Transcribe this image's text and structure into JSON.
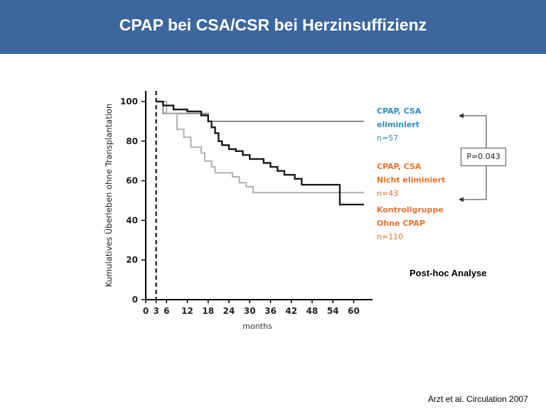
{
  "slide": {
    "title": "CPAP bei CSA/CSR bei Herzinsuffizienz",
    "title_bar_color": "#3b679e",
    "posthoc": "Post-hoc Analyse",
    "citation": "Arzt et al. Circulation 2007"
  },
  "legend": {
    "eliminated": {
      "line1": "CPAP, CSA",
      "line2": "eliminiert",
      "n": "n=57",
      "color": "#2e8bc0"
    },
    "not_eliminated": {
      "line1": "CPAP, CSA",
      "line2": "Nicht eliminiert",
      "n": "n=43",
      "color": "#e8702a"
    },
    "control": {
      "line1": "Kontrollgruppe",
      "line2": "Ohne CPAP",
      "n": "n=110",
      "color": "#e8702a"
    }
  },
  "pvalue": {
    "label": "P=0.043"
  },
  "chart_data": {
    "type": "line",
    "title": "",
    "xlabel": "months",
    "ylabel": "Kumulatives Überleben ohne Transplantation",
    "xlim": [
      0,
      64
    ],
    "ylim": [
      0,
      100
    ],
    "xticks": [
      0,
      3,
      6,
      12,
      18,
      24,
      30,
      36,
      42,
      48,
      54,
      60
    ],
    "yticks": [
      0,
      20,
      40,
      60,
      80,
      100
    ],
    "dashed_reference_x": 3,
    "grid": false,
    "series": [
      {
        "label": "CPAP, CSA eliminiert",
        "color": "#8a8a8a",
        "step": true,
        "points": [
          [
            3,
            100
          ],
          [
            5,
            100
          ],
          [
            5,
            94
          ],
          [
            18,
            94
          ],
          [
            18,
            90
          ],
          [
            63,
            90
          ]
        ]
      },
      {
        "label": "CPAP, CSA Nicht eliminiert",
        "color": "#b0b0b0",
        "step": true,
        "points": [
          [
            3,
            100
          ],
          [
            6,
            100
          ],
          [
            6,
            94
          ],
          [
            9,
            94
          ],
          [
            9,
            86
          ],
          [
            11,
            86
          ],
          [
            11,
            82
          ],
          [
            13,
            82
          ],
          [
            13,
            77
          ],
          [
            16,
            77
          ],
          [
            16,
            74
          ],
          [
            17,
            74
          ],
          [
            17,
            70
          ],
          [
            19,
            70
          ],
          [
            19,
            67
          ],
          [
            20,
            67
          ],
          [
            20,
            64
          ],
          [
            25,
            64
          ],
          [
            25,
            62
          ],
          [
            27,
            62
          ],
          [
            27,
            59
          ],
          [
            29,
            59
          ],
          [
            29,
            57
          ],
          [
            31,
            57
          ],
          [
            31,
            54
          ],
          [
            56,
            54
          ],
          [
            56,
            54
          ],
          [
            63,
            54
          ]
        ]
      },
      {
        "label": "Kontrollgruppe Ohne CPAP",
        "color": "#1a1a1a",
        "step": true,
        "points": [
          [
            3,
            100
          ],
          [
            5,
            100
          ],
          [
            5,
            98
          ],
          [
            8,
            98
          ],
          [
            8,
            96
          ],
          [
            12,
            96
          ],
          [
            12,
            95
          ],
          [
            16,
            95
          ],
          [
            16,
            93
          ],
          [
            18,
            93
          ],
          [
            18,
            90
          ],
          [
            19,
            90
          ],
          [
            19,
            87
          ],
          [
            20,
            87
          ],
          [
            20,
            84
          ],
          [
            21,
            84
          ],
          [
            21,
            80
          ],
          [
            22,
            80
          ],
          [
            22,
            78
          ],
          [
            24,
            78
          ],
          [
            24,
            76
          ],
          [
            26,
            76
          ],
          [
            26,
            75
          ],
          [
            28,
            75
          ],
          [
            28,
            73
          ],
          [
            30,
            73
          ],
          [
            30,
            71
          ],
          [
            34,
            71
          ],
          [
            34,
            69
          ],
          [
            36,
            69
          ],
          [
            36,
            67
          ],
          [
            38,
            67
          ],
          [
            38,
            65
          ],
          [
            40,
            65
          ],
          [
            40,
            63
          ],
          [
            43,
            63
          ],
          [
            43,
            61
          ],
          [
            45,
            61
          ],
          [
            45,
            58
          ],
          [
            56,
            58
          ],
          [
            56,
            48
          ],
          [
            63,
            48
          ]
        ]
      }
    ]
  }
}
